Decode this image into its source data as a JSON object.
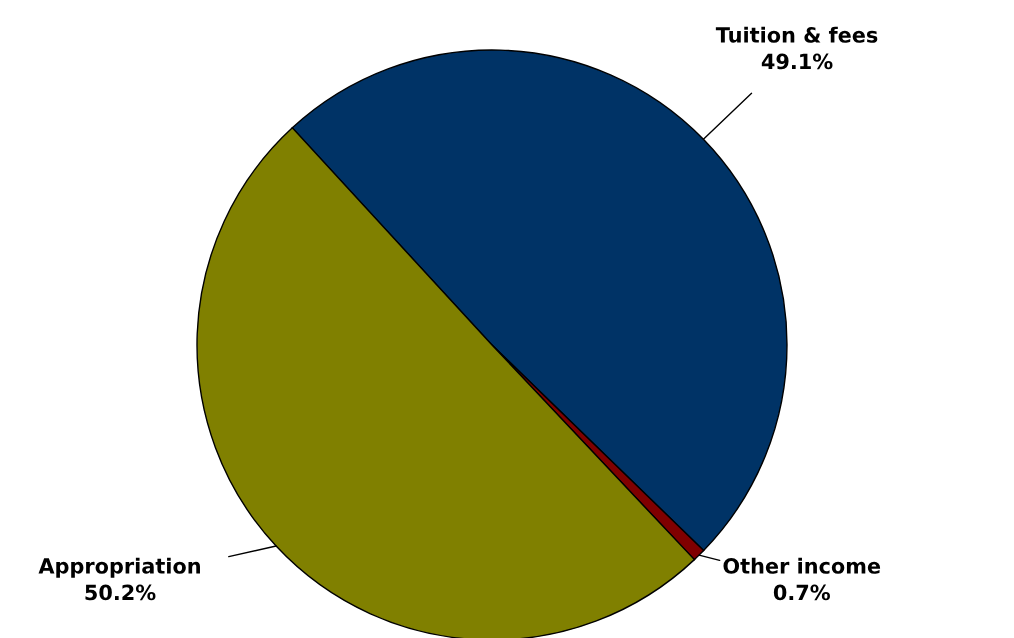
{
  "chart_data": {
    "type": "pie",
    "categories": [
      "Tuition & fees",
      "Other income",
      "Appropriation"
    ],
    "values": [
      49.1,
      0.7,
      50.2
    ],
    "value_labels": [
      "49.1%",
      "0.7%",
      "50.2%"
    ],
    "colors": [
      "#003366",
      "#800000",
      "#808000"
    ],
    "legend": false
  }
}
